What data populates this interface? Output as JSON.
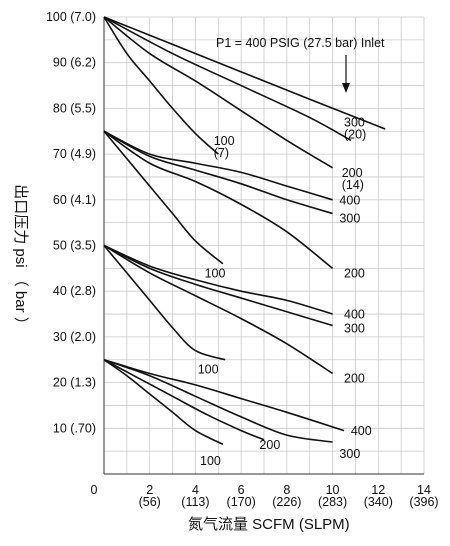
{
  "chart_data": {
    "type": "line",
    "title": "",
    "xlabel": "氮气流量  SCFM (SLPM)",
    "ylabel": "出口压力  psi （ bar ）",
    "xlim": [
      0,
      14
    ],
    "ylim": [
      0,
      100
    ],
    "grid": true,
    "x_ticks": [
      {
        "value": 0,
        "label": "0",
        "sub": ""
      },
      {
        "value": 2,
        "label": "2",
        "sub": "(56)"
      },
      {
        "value": 4,
        "label": "4",
        "sub": "(113)"
      },
      {
        "value": 6,
        "label": "6",
        "sub": "(170)"
      },
      {
        "value": 8,
        "label": "8",
        "sub": "(226)"
      },
      {
        "value": 10,
        "label": "10",
        "sub": "(283)"
      },
      {
        "value": 12,
        "label": "12",
        "sub": "(340)"
      },
      {
        "value": 14,
        "label": "14",
        "sub": "(396)"
      }
    ],
    "y_ticks": [
      {
        "value": 100,
        "label": "100 (7.0)"
      },
      {
        "value": 90,
        "label": "90 (6.2)"
      },
      {
        "value": 80,
        "label": "80 (5.5)"
      },
      {
        "value": 70,
        "label": "70 (4.9)"
      },
      {
        "value": 60,
        "label": "60 (4.1)"
      },
      {
        "value": 50,
        "label": "50 (3.5)"
      },
      {
        "value": 40,
        "label": "40 (2.8)"
      },
      {
        "value": 30,
        "label": "30 (2.0)"
      },
      {
        "value": 20,
        "label": "20 (1.3)"
      },
      {
        "value": 10,
        "label": "10 (.70)"
      }
    ],
    "annotation": "P1 = 400 PSIG (27.5 bar) Inlet",
    "series": [
      {
        "set": 100,
        "name": "400",
        "x": [
          0,
          3,
          6,
          9,
          12.3
        ],
        "y": [
          100,
          94,
          88,
          82,
          75.5
        ]
      },
      {
        "set": 100,
        "name": "300",
        "x": [
          0,
          3,
          6,
          9,
          10.8
        ],
        "y": [
          100,
          92,
          85,
          78,
          73
        ]
      },
      {
        "set": 100,
        "name": "200",
        "x": [
          0,
          2,
          4,
          6,
          8,
          10
        ],
        "y": [
          100,
          92,
          86,
          79.5,
          73,
          67
        ]
      },
      {
        "set": 100,
        "name": "100",
        "x": [
          0,
          1,
          2,
          3,
          4,
          5
        ],
        "y": [
          100,
          92,
          86,
          80,
          74.5,
          70
        ]
      },
      {
        "set": 75,
        "name": "400",
        "x": [
          0,
          2,
          4,
          6,
          8,
          10
        ],
        "y": [
          75,
          70,
          68,
          66,
          63,
          60
        ]
      },
      {
        "set": 75,
        "name": "300",
        "x": [
          0,
          2,
          4,
          6,
          8,
          10
        ],
        "y": [
          75,
          69.5,
          66.5,
          63.5,
          60,
          57
        ]
      },
      {
        "set": 75,
        "name": "200",
        "x": [
          0,
          2,
          4,
          6,
          8,
          10
        ],
        "y": [
          75,
          68,
          64,
          59,
          53,
          45
        ]
      },
      {
        "set": 75,
        "name": "100",
        "x": [
          0,
          1,
          2,
          3,
          4,
          5.2
        ],
        "y": [
          75,
          69,
          63,
          57,
          51,
          46
        ]
      },
      {
        "set": 50,
        "name": "400",
        "x": [
          0,
          2,
          4,
          6,
          8,
          10
        ],
        "y": [
          50,
          45.5,
          42.5,
          40,
          38,
          35
        ]
      },
      {
        "set": 50,
        "name": "300",
        "x": [
          0,
          2,
          4,
          6,
          8,
          10
        ],
        "y": [
          50,
          45,
          41.5,
          38.5,
          35.5,
          32.5
        ]
      },
      {
        "set": 50,
        "name": "200",
        "x": [
          0,
          2,
          4,
          6,
          8,
          10
        ],
        "y": [
          50,
          44,
          39,
          34,
          28.5,
          22
        ]
      },
      {
        "set": 50,
        "name": "100",
        "x": [
          0,
          1,
          2,
          3,
          4,
          5.3
        ],
        "y": [
          50,
          44,
          38,
          32,
          27,
          25
        ]
      },
      {
        "set": 25,
        "name": "400",
        "x": [
          0,
          2,
          4,
          6,
          8,
          10.5
        ],
        "y": [
          25,
          22,
          19.5,
          16.5,
          13.5,
          9.5
        ]
      },
      {
        "set": 25,
        "name": "300",
        "x": [
          0,
          2,
          4,
          6,
          8,
          10
        ],
        "y": [
          25,
          21.5,
          17,
          12.5,
          8.5,
          7
        ]
      },
      {
        "set": 25,
        "name": "200",
        "x": [
          0,
          1.5,
          3,
          4.5,
          6,
          7
        ],
        "y": [
          25,
          21,
          17,
          13,
          9.5,
          7.5
        ]
      },
      {
        "set": 25,
        "name": "100",
        "x": [
          0,
          1,
          2,
          3,
          4,
          5.2
        ],
        "y": [
          25,
          21.5,
          17.5,
          13.5,
          9.5,
          6.5
        ]
      }
    ],
    "curve_labels": [
      {
        "text": "100",
        "sub": "(7)",
        "x": 4.8,
        "y": 72
      },
      {
        "text": "300",
        "sub": "(20)",
        "x": 10.5,
        "y": 76
      },
      {
        "text": "200",
        "sub": "(14)",
        "x": 10.4,
        "y": 65
      },
      {
        "text": "400",
        "sub": "",
        "x": 10.3,
        "y": 59
      },
      {
        "text": "300",
        "sub": "",
        "x": 10.3,
        "y": 55
      },
      {
        "text": "100",
        "sub": "",
        "x": 4.4,
        "y": 43
      },
      {
        "text": "200",
        "sub": "",
        "x": 10.5,
        "y": 43
      },
      {
        "text": "400",
        "sub": "",
        "x": 10.5,
        "y": 34
      },
      {
        "text": "300",
        "sub": "",
        "x": 10.5,
        "y": 31
      },
      {
        "text": "100",
        "sub": "",
        "x": 4.1,
        "y": 22
      },
      {
        "text": "200",
        "sub": "",
        "x": 10.5,
        "y": 20
      },
      {
        "text": "400",
        "sub": "",
        "x": 10.8,
        "y": 8.5
      },
      {
        "text": "200",
        "sub": "",
        "x": 6.8,
        "y": 5.5
      },
      {
        "text": "300",
        "sub": "",
        "x": 10.3,
        "y": 3.5
      },
      {
        "text": "100",
        "sub": "",
        "x": 4.2,
        "y": 2
      }
    ]
  }
}
